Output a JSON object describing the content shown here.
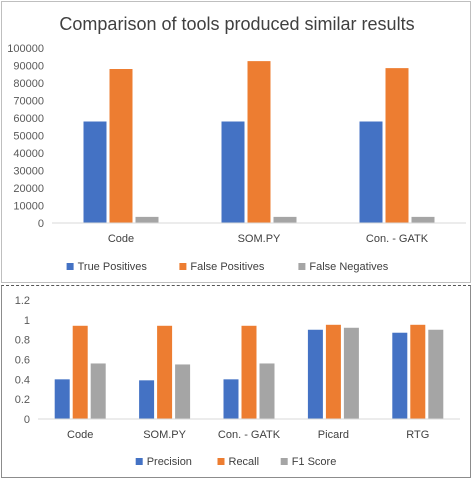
{
  "chart_data": [
    {
      "type": "bar",
      "title": "Comparison of tools produced similar results",
      "categories": [
        "Code",
        "SOM.PY",
        "Con. - GATK"
      ],
      "series": [
        {
          "name": "True Positives",
          "color": "#4472C4",
          "values": [
            58000,
            58000,
            58000
          ]
        },
        {
          "name": "False Positives",
          "color": "#ED7D31",
          "values": [
            88000,
            92500,
            88500
          ]
        },
        {
          "name": "False Negatives",
          "color": "#A5A5A5",
          "values": [
            3500,
            3500,
            3500
          ]
        }
      ],
      "ylim": [
        0,
        100000
      ],
      "yticks": [
        "0",
        "10000",
        "20000",
        "30000",
        "40000",
        "50000",
        "60000",
        "70000",
        "80000",
        "90000",
        "100000"
      ],
      "grid": false,
      "legend_position": "bottom"
    },
    {
      "type": "bar",
      "title": "",
      "categories": [
        "Code",
        "SOM.PY",
        "Con. - GATK",
        "Picard",
        "RTG"
      ],
      "series": [
        {
          "name": "Precision",
          "color": "#4472C4",
          "values": [
            0.4,
            0.39,
            0.4,
            0.9,
            0.87
          ]
        },
        {
          "name": "Recall",
          "color": "#ED7D31",
          "values": [
            0.94,
            0.94,
            0.94,
            0.95,
            0.95
          ]
        },
        {
          "name": "F1 Score",
          "color": "#A5A5A5",
          "values": [
            0.56,
            0.55,
            0.56,
            0.92,
            0.9
          ]
        }
      ],
      "ylim": [
        0,
        1.2
      ],
      "yticks": [
        "0",
        "0.2",
        "0.4",
        "0.6",
        "0.8",
        "1",
        "1.2"
      ],
      "grid": false,
      "legend_position": "bottom"
    }
  ]
}
